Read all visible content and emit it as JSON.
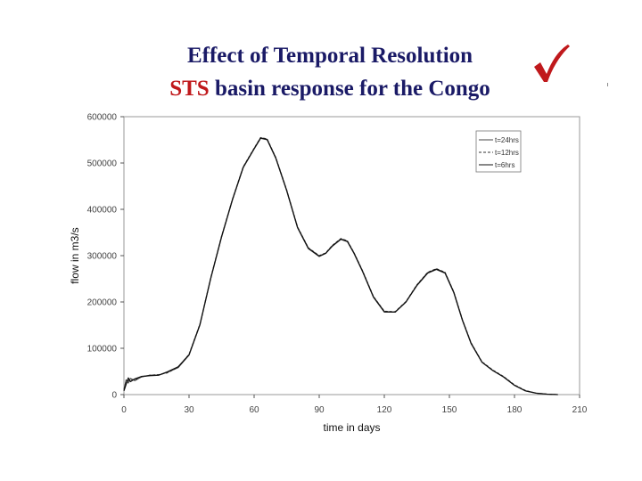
{
  "title": {
    "line1": "Effect of Temporal Resolution",
    "line2_accent": "STS",
    "line2_rest": " basin response for the Congo"
  },
  "icons": {
    "check": "check-mark-icon"
  },
  "colors": {
    "title": "#1a1a66",
    "accent": "#c0191c",
    "line": "#1a1a1a"
  },
  "chart_data": {
    "type": "line",
    "xlabel": "time in days",
    "ylabel": "flow in m3/s",
    "xlim": [
      0,
      210
    ],
    "ylim": [
      0,
      600000
    ],
    "xticks": [
      0,
      30,
      60,
      90,
      120,
      150,
      180,
      210
    ],
    "xtick_labels": [
      "0",
      "30",
      "60",
      "90",
      "120",
      "150",
      "180",
      "210"
    ],
    "yticks": [
      0,
      100000,
      200000,
      300000,
      400000,
      500000,
      600000
    ],
    "ytick_labels": [
      "0",
      "100000",
      "200000",
      "300000",
      "400000",
      "500000",
      "600000"
    ],
    "grid": false,
    "legend_position": "top-right",
    "series": [
      {
        "name": "t=24hrs",
        "x": [
          0,
          1,
          2,
          3,
          5,
          8,
          12,
          16,
          20,
          25,
          30,
          35,
          40,
          45,
          50,
          55,
          60,
          63,
          66,
          70,
          75,
          80,
          85,
          90,
          93,
          96,
          100,
          103,
          106,
          110,
          115,
          120,
          125,
          130,
          135,
          140,
          144,
          148,
          152,
          156,
          160,
          165,
          170,
          175,
          180,
          185,
          190,
          195,
          200
        ],
        "y": [
          10000,
          32000,
          25000,
          35000,
          30000,
          38000,
          42000,
          42000,
          48000,
          58000,
          85000,
          150000,
          250000,
          340000,
          420000,
          490000,
          530000,
          553000,
          550000,
          510000,
          440000,
          360000,
          315000,
          298000,
          305000,
          320000,
          335000,
          330000,
          305000,
          265000,
          210000,
          178000,
          178000,
          200000,
          235000,
          262000,
          270000,
          262000,
          220000,
          160000,
          110000,
          70000,
          52000,
          38000,
          20000,
          8000,
          3000,
          1000,
          0
        ]
      },
      {
        "name": "t=12hrs",
        "x": [
          0,
          1,
          2,
          3,
          5,
          8,
          12,
          16,
          20,
          25,
          30,
          35,
          40,
          45,
          50,
          55,
          60,
          63,
          66,
          70,
          75,
          80,
          85,
          90,
          93,
          96,
          100,
          103,
          106,
          110,
          115,
          120,
          125,
          130,
          135,
          140,
          144,
          148,
          152,
          156,
          160,
          165,
          170,
          175,
          180,
          185,
          190,
          195,
          200
        ],
        "y": [
          12000,
          28000,
          30000,
          33000,
          32000,
          38000,
          42000,
          43000,
          47000,
          59000,
          87000,
          152000,
          252000,
          342000,
          422000,
          492000,
          532000,
          555000,
          552000,
          512000,
          442000,
          362000,
          317000,
          300000,
          306000,
          322000,
          337000,
          332000,
          307000,
          267000,
          212000,
          180000,
          179000,
          201000,
          237000,
          264000,
          272000,
          264000,
          222000,
          162000,
          112000,
          71000,
          53000,
          39000,
          21000,
          9000,
          3000,
          1000,
          0
        ]
      },
      {
        "name": "t=6hrs",
        "x": [
          0,
          1,
          2,
          3,
          5,
          8,
          12,
          16,
          20,
          25,
          30,
          35,
          40,
          45,
          50,
          55,
          60,
          63,
          66,
          70,
          75,
          80,
          85,
          90,
          93,
          96,
          100,
          103,
          106,
          110,
          115,
          120,
          125,
          130,
          135,
          140,
          144,
          148,
          152,
          156,
          160,
          165,
          170,
          175,
          180,
          185,
          190,
          195,
          200
        ],
        "y": [
          8000,
          22000,
          36000,
          28000,
          34000,
          39000,
          41000,
          42000,
          49000,
          60000,
          86000,
          151000,
          251000,
          341000,
          421000,
          491000,
          531000,
          554000,
          551000,
          511000,
          441000,
          361000,
          316000,
          299000,
          305000,
          321000,
          336000,
          331000,
          306000,
          266000,
          211000,
          179000,
          178000,
          200000,
          236000,
          263000,
          271000,
          263000,
          221000,
          161000,
          111000,
          70000,
          52000,
          38000,
          20000,
          8000,
          3000,
          1000,
          0
        ]
      }
    ]
  }
}
